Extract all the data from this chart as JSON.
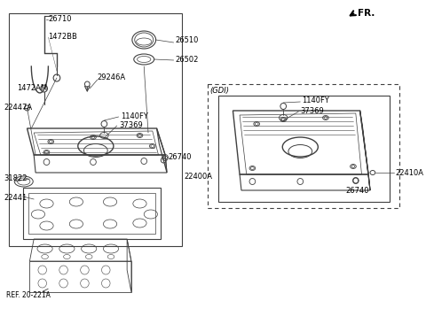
{
  "bg_color": "#ffffff",
  "line_color": "#404040",
  "text_color": "#000000",
  "fr_label": "FR.",
  "ref_label": "REF. 20-221A",
  "gdi_label": "(GDI)",
  "font_size": 6.5,
  "dpi": 100,
  "fig_w": 4.8,
  "fig_h": 3.66
}
